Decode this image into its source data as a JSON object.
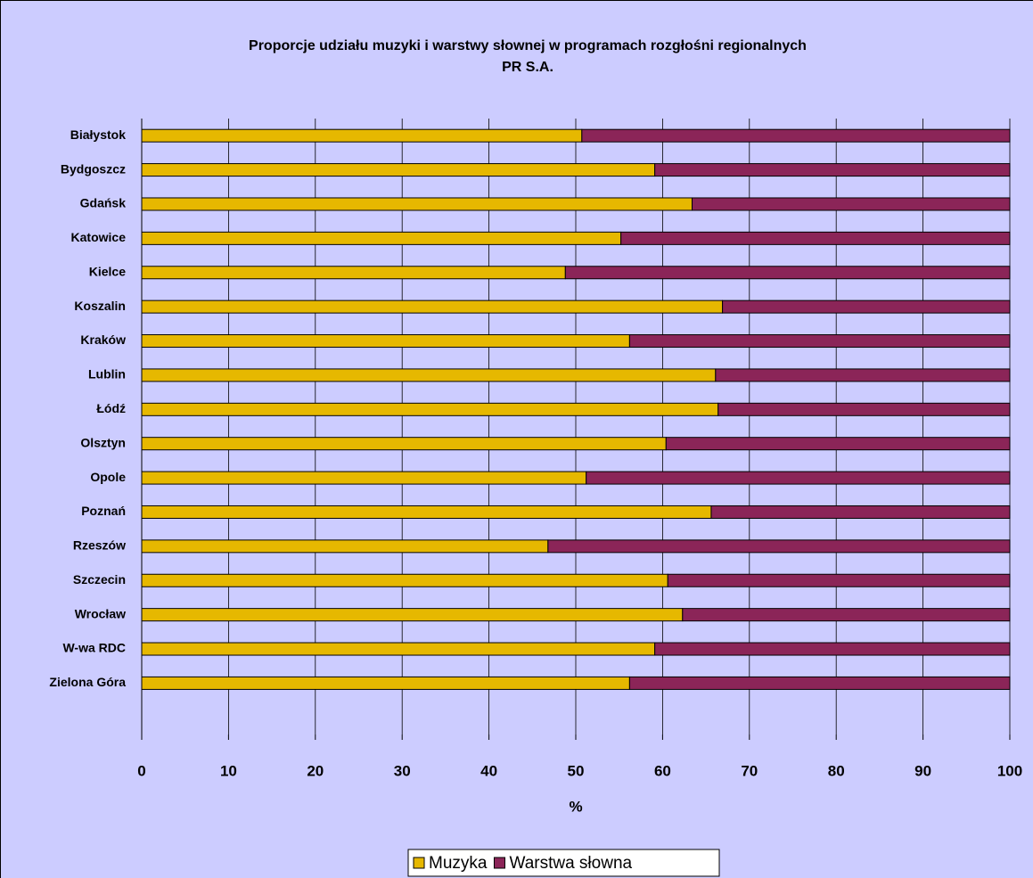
{
  "chart_data": {
    "type": "stacked_barh",
    "title": [
      "Proporcje udziału muzyki i warstwy słownej w programach rozgłośni regionalnych",
      "PR S.A."
    ],
    "xlabel": "%",
    "categories": [
      "Białystok",
      "Bydgoszcz",
      "Gdańsk",
      "Katowice",
      "Kielce",
      "Koszalin",
      "Kraków",
      "Lublin",
      "Łódź",
      "Olsztyn",
      "Opole",
      "Poznań",
      "Rzeszów",
      "Szczecin",
      "Wrocław",
      "W-wa RDC",
      "Zielona Góra",
      null
    ],
    "series": [
      {
        "name": "Muzyka",
        "color": "#e6b800",
        "values": [
          50.7,
          59.1,
          63.4,
          55.2,
          48.8,
          66.9,
          56.2,
          66.1,
          66.4,
          60.4,
          51.2,
          65.6,
          46.8,
          60.6,
          62.3,
          59.1,
          56.2,
          null
        ]
      },
      {
        "name": "Warstwa słowna",
        "color": "#8b2558",
        "values": [
          49.3,
          40.9,
          36.6,
          44.8,
          51.2,
          33.1,
          43.8,
          33.9,
          33.6,
          39.6,
          48.8,
          34.4,
          53.2,
          39.4,
          37.7,
          40.9,
          43.8,
          null
        ]
      }
    ],
    "xlim": [
      0,
      100
    ],
    "xticks": [
      0,
      10,
      20,
      30,
      40,
      50,
      60,
      70,
      80,
      90,
      100
    ],
    "grid": true,
    "legend": "bottom"
  }
}
